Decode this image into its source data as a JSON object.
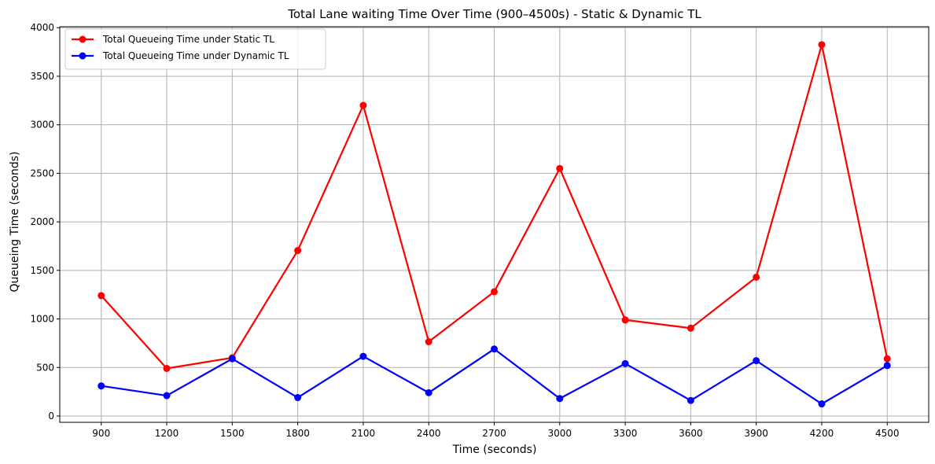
{
  "chart_data": {
    "type": "line",
    "title": "Total Lane waiting Time Over Time (900–4500s) - Static & Dynamic TL",
    "xlabel": "Time (seconds)",
    "ylabel": "Queueing Time (seconds)",
    "x": [
      900,
      1200,
      1500,
      1800,
      2100,
      2400,
      2700,
      3000,
      3300,
      3600,
      3900,
      4200,
      4500
    ],
    "x_tick_labels": [
      "900",
      "1200",
      "1500",
      "1800",
      "2100",
      "2400",
      "2700",
      "3000",
      "3300",
      "3600",
      "3900",
      "4200",
      "4500"
    ],
    "y_ticks": [
      0,
      500,
      1000,
      1500,
      2000,
      2500,
      3000,
      3500,
      4000
    ],
    "y_tick_labels": [
      "0",
      "500",
      "1000",
      "1500",
      "2000",
      "2500",
      "3000",
      "3500",
      "4000"
    ],
    "xlim": [
      710,
      4690
    ],
    "ylim": [
      -65,
      4010
    ],
    "grid": true,
    "legend_position": "upper-left",
    "series": [
      {
        "name": "Total Queueing Time under Static TL",
        "color": "#ff0000",
        "marker": "circle",
        "values": [
          1240,
          490,
          600,
          1705,
          3200,
          765,
          1280,
          2550,
          990,
          905,
          1430,
          3825,
          590
        ]
      },
      {
        "name": "Total Queueing Time under Dynamic TL",
        "color": "#0000ff",
        "marker": "circle",
        "values": [
          310,
          210,
          590,
          190,
          615,
          240,
          690,
          180,
          540,
          160,
          570,
          125,
          520
        ]
      }
    ]
  }
}
